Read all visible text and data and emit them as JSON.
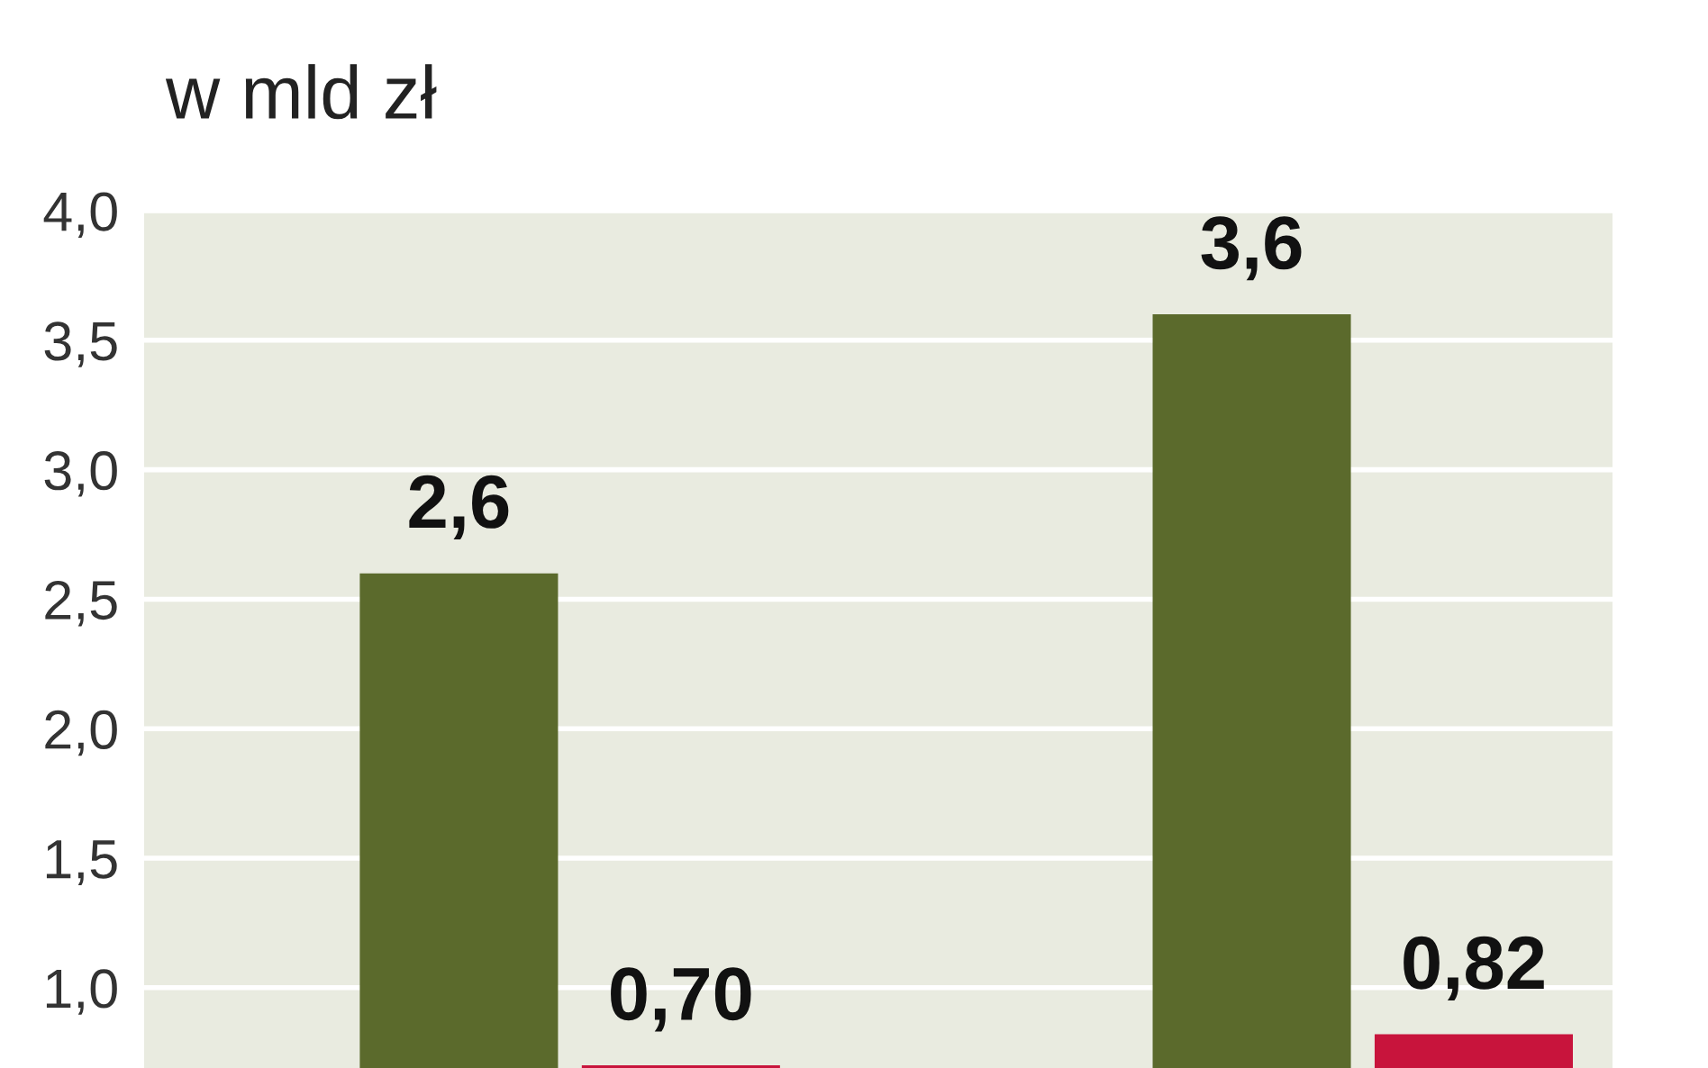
{
  "chart_data": {
    "type": "bar",
    "title": "w mld zł",
    "categories": [
      null,
      null
    ],
    "series": [
      {
        "color": "#5b6a2c",
        "values": [
          2.6,
          3.6
        ]
      },
      {
        "color": "#c8143c",
        "values": [
          0.7,
          0.82
        ]
      }
    ],
    "ylim": [
      0.69,
      4.0
    ],
    "yticks": [
      {
        "value": 1.0,
        "label": "1,0"
      },
      {
        "value": 1.5,
        "label": "1,5"
      },
      {
        "value": 2.0,
        "label": "2,0"
      },
      {
        "value": 2.5,
        "label": "2,5"
      },
      {
        "value": 3.0,
        "label": "3,0"
      },
      {
        "value": 3.5,
        "label": "3,5"
      },
      {
        "value": 4.0,
        "label": "4,0"
      }
    ],
    "value_labels": [
      [
        "2,6",
        "3,6"
      ],
      [
        "0,70",
        "0,82"
      ]
    ],
    "grid": "y",
    "legend": false
  }
}
